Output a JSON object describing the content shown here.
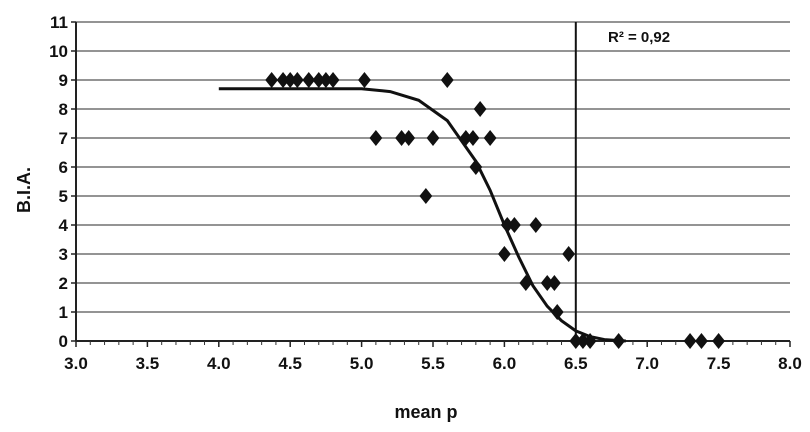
{
  "chart_data": {
    "type": "scatter",
    "title": "",
    "xlabel": "mean p",
    "ylabel": "B.I.A.",
    "xlim": [
      3.0,
      8.0
    ],
    "ylim": [
      0,
      11
    ],
    "x_ticks": [
      "3.0",
      "3.5",
      "4.0",
      "4.5",
      "5.0",
      "5.5",
      "6.0",
      "6.5",
      "7.0",
      "7.5",
      "8.0"
    ],
    "y_ticks": [
      "0",
      "1",
      "2",
      "3",
      "4",
      "5",
      "6",
      "7",
      "8",
      "9",
      "10",
      "11"
    ],
    "grid": "horizontal",
    "legend": "none",
    "annotation": "R² = 0,92",
    "threshold_x": 6.5,
    "points": [
      {
        "x": 4.37,
        "y": 9
      },
      {
        "x": 4.45,
        "y": 9
      },
      {
        "x": 4.5,
        "y": 9
      },
      {
        "x": 4.55,
        "y": 9
      },
      {
        "x": 4.63,
        "y": 9
      },
      {
        "x": 4.7,
        "y": 9
      },
      {
        "x": 4.75,
        "y": 9
      },
      {
        "x": 4.8,
        "y": 9
      },
      {
        "x": 5.02,
        "y": 9
      },
      {
        "x": 5.1,
        "y": 7
      },
      {
        "x": 5.28,
        "y": 7
      },
      {
        "x": 5.33,
        "y": 7
      },
      {
        "x": 5.45,
        "y": 5
      },
      {
        "x": 5.5,
        "y": 7
      },
      {
        "x": 5.6,
        "y": 9
      },
      {
        "x": 5.73,
        "y": 7
      },
      {
        "x": 5.78,
        "y": 7
      },
      {
        "x": 5.8,
        "y": 6
      },
      {
        "x": 5.83,
        "y": 8
      },
      {
        "x": 5.9,
        "y": 7
      },
      {
        "x": 6.0,
        "y": 3
      },
      {
        "x": 6.02,
        "y": 4
      },
      {
        "x": 6.07,
        "y": 4
      },
      {
        "x": 6.15,
        "y": 2
      },
      {
        "x": 6.22,
        "y": 4
      },
      {
        "x": 6.3,
        "y": 2
      },
      {
        "x": 6.35,
        "y": 2
      },
      {
        "x": 6.37,
        "y": 1
      },
      {
        "x": 6.45,
        "y": 3
      },
      {
        "x": 6.5,
        "y": 0
      },
      {
        "x": 6.55,
        "y": 0
      },
      {
        "x": 6.6,
        "y": 0
      },
      {
        "x": 6.8,
        "y": 0
      },
      {
        "x": 7.3,
        "y": 0
      },
      {
        "x": 7.38,
        "y": 0
      },
      {
        "x": 7.5,
        "y": 0
      }
    ],
    "fit_curve": {
      "type": "sigmoid",
      "x_range": [
        4.0,
        6.85
      ],
      "values": [
        {
          "x": 4.0,
          "y": 8.7
        },
        {
          "x": 5.0,
          "y": 8.7
        },
        {
          "x": 5.2,
          "y": 8.6
        },
        {
          "x": 5.4,
          "y": 8.3
        },
        {
          "x": 5.6,
          "y": 7.6
        },
        {
          "x": 5.8,
          "y": 6.2
        },
        {
          "x": 5.9,
          "y": 5.2
        },
        {
          "x": 6.0,
          "y": 4.0
        },
        {
          "x": 6.1,
          "y": 2.9
        },
        {
          "x": 6.2,
          "y": 1.9
        },
        {
          "x": 6.3,
          "y": 1.2
        },
        {
          "x": 6.4,
          "y": 0.7
        },
        {
          "x": 6.5,
          "y": 0.35
        },
        {
          "x": 6.6,
          "y": 0.15
        },
        {
          "x": 6.7,
          "y": 0.05
        },
        {
          "x": 6.85,
          "y": 0.0
        }
      ]
    }
  }
}
